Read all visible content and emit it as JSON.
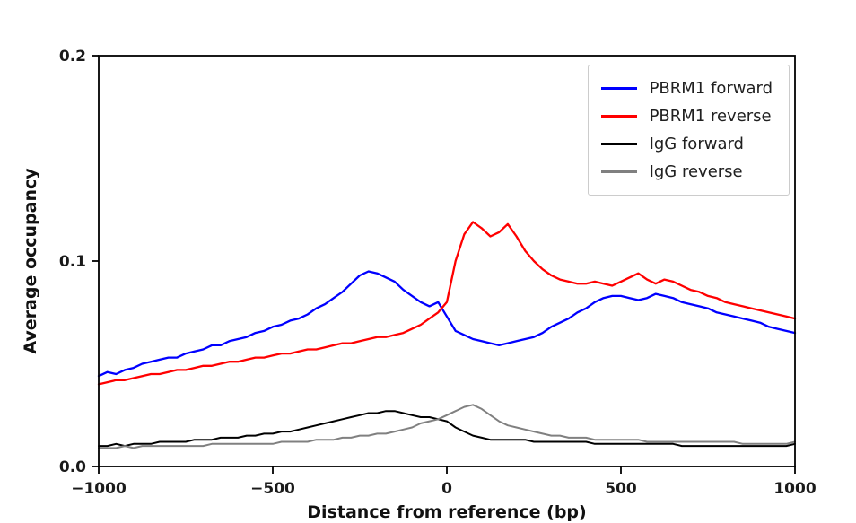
{
  "figure": {
    "background": "#ffffff"
  },
  "chart_data": {
    "type": "line",
    "title": "",
    "xlabel": "Distance from reference (bp)",
    "ylabel": "Average occupancy",
    "xlim": [
      -1000,
      1000
    ],
    "ylim": [
      0,
      0.2
    ],
    "grid": false,
    "legend_position": "upper right",
    "x_ticks": [
      -1000,
      -500,
      0,
      500,
      1000
    ],
    "x_tick_labels": [
      "−1000",
      "−500",
      "0",
      "500",
      "1000"
    ],
    "y_ticks": [
      0.0,
      0.1,
      0.2
    ],
    "y_tick_labels": [
      "0.0",
      "0.1",
      "0.2"
    ],
    "x": [
      -1000,
      -975,
      -950,
      -925,
      -900,
      -875,
      -850,
      -825,
      -800,
      -775,
      -750,
      -725,
      -700,
      -675,
      -650,
      -625,
      -600,
      -575,
      -550,
      -525,
      -500,
      -475,
      -450,
      -425,
      -400,
      -375,
      -350,
      -325,
      -300,
      -275,
      -250,
      -225,
      -200,
      -175,
      -150,
      -125,
      -100,
      -75,
      -50,
      -25,
      0,
      25,
      50,
      75,
      100,
      125,
      150,
      175,
      200,
      225,
      250,
      275,
      300,
      325,
      350,
      375,
      400,
      425,
      450,
      475,
      500,
      525,
      550,
      575,
      600,
      625,
      650,
      675,
      700,
      725,
      750,
      775,
      800,
      825,
      850,
      875,
      900,
      925,
      950,
      975,
      1000
    ],
    "series": [
      {
        "name": "PBRM1 forward",
        "color": "#0000ff",
        "values": [
          0.044,
          0.046,
          0.045,
          0.047,
          0.048,
          0.05,
          0.051,
          0.052,
          0.053,
          0.053,
          0.055,
          0.056,
          0.057,
          0.059,
          0.059,
          0.061,
          0.062,
          0.063,
          0.065,
          0.066,
          0.068,
          0.069,
          0.071,
          0.072,
          0.074,
          0.077,
          0.079,
          0.082,
          0.085,
          0.089,
          0.093,
          0.095,
          0.094,
          0.092,
          0.09,
          0.086,
          0.083,
          0.08,
          0.078,
          0.08,
          0.073,
          0.066,
          0.064,
          0.062,
          0.061,
          0.06,
          0.059,
          0.06,
          0.061,
          0.062,
          0.063,
          0.065,
          0.068,
          0.07,
          0.072,
          0.075,
          0.077,
          0.08,
          0.082,
          0.083,
          0.083,
          0.082,
          0.081,
          0.082,
          0.084,
          0.083,
          0.082,
          0.08,
          0.079,
          0.078,
          0.077,
          0.075,
          0.074,
          0.073,
          0.072,
          0.071,
          0.07,
          0.068,
          0.067,
          0.066,
          0.065
        ]
      },
      {
        "name": "PBRM1 reverse",
        "color": "#ff0000",
        "values": [
          0.04,
          0.041,
          0.042,
          0.042,
          0.043,
          0.044,
          0.045,
          0.045,
          0.046,
          0.047,
          0.047,
          0.048,
          0.049,
          0.049,
          0.05,
          0.051,
          0.051,
          0.052,
          0.053,
          0.053,
          0.054,
          0.055,
          0.055,
          0.056,
          0.057,
          0.057,
          0.058,
          0.059,
          0.06,
          0.06,
          0.061,
          0.062,
          0.063,
          0.063,
          0.064,
          0.065,
          0.067,
          0.069,
          0.072,
          0.075,
          0.08,
          0.1,
          0.113,
          0.119,
          0.116,
          0.112,
          0.114,
          0.118,
          0.112,
          0.105,
          0.1,
          0.096,
          0.093,
          0.091,
          0.09,
          0.089,
          0.089,
          0.09,
          0.089,
          0.088,
          0.09,
          0.092,
          0.094,
          0.091,
          0.089,
          0.091,
          0.09,
          0.088,
          0.086,
          0.085,
          0.083,
          0.082,
          0.08,
          0.079,
          0.078,
          0.077,
          0.076,
          0.075,
          0.074,
          0.073,
          0.072
        ]
      },
      {
        "name": "IgG forward",
        "color": "#000000",
        "values": [
          0.01,
          0.01,
          0.011,
          0.01,
          0.011,
          0.011,
          0.011,
          0.012,
          0.012,
          0.012,
          0.012,
          0.013,
          0.013,
          0.013,
          0.014,
          0.014,
          0.014,
          0.015,
          0.015,
          0.016,
          0.016,
          0.017,
          0.017,
          0.018,
          0.019,
          0.02,
          0.021,
          0.022,
          0.023,
          0.024,
          0.025,
          0.026,
          0.026,
          0.027,
          0.027,
          0.026,
          0.025,
          0.024,
          0.024,
          0.023,
          0.022,
          0.019,
          0.017,
          0.015,
          0.014,
          0.013,
          0.013,
          0.013,
          0.013,
          0.013,
          0.012,
          0.012,
          0.012,
          0.012,
          0.012,
          0.012,
          0.012,
          0.011,
          0.011,
          0.011,
          0.011,
          0.011,
          0.011,
          0.011,
          0.011,
          0.011,
          0.011,
          0.01,
          0.01,
          0.01,
          0.01,
          0.01,
          0.01,
          0.01,
          0.01,
          0.01,
          0.01,
          0.01,
          0.01,
          0.01,
          0.011
        ]
      },
      {
        "name": "IgG reverse",
        "color": "#808080",
        "values": [
          0.009,
          0.009,
          0.009,
          0.01,
          0.009,
          0.01,
          0.01,
          0.01,
          0.01,
          0.01,
          0.01,
          0.01,
          0.01,
          0.011,
          0.011,
          0.011,
          0.011,
          0.011,
          0.011,
          0.011,
          0.011,
          0.012,
          0.012,
          0.012,
          0.012,
          0.013,
          0.013,
          0.013,
          0.014,
          0.014,
          0.015,
          0.015,
          0.016,
          0.016,
          0.017,
          0.018,
          0.019,
          0.021,
          0.022,
          0.023,
          0.025,
          0.027,
          0.029,
          0.03,
          0.028,
          0.025,
          0.022,
          0.02,
          0.019,
          0.018,
          0.017,
          0.016,
          0.015,
          0.015,
          0.014,
          0.014,
          0.014,
          0.013,
          0.013,
          0.013,
          0.013,
          0.013,
          0.013,
          0.012,
          0.012,
          0.012,
          0.012,
          0.012,
          0.012,
          0.012,
          0.012,
          0.012,
          0.012,
          0.012,
          0.011,
          0.011,
          0.011,
          0.011,
          0.011,
          0.011,
          0.012
        ]
      }
    ]
  }
}
